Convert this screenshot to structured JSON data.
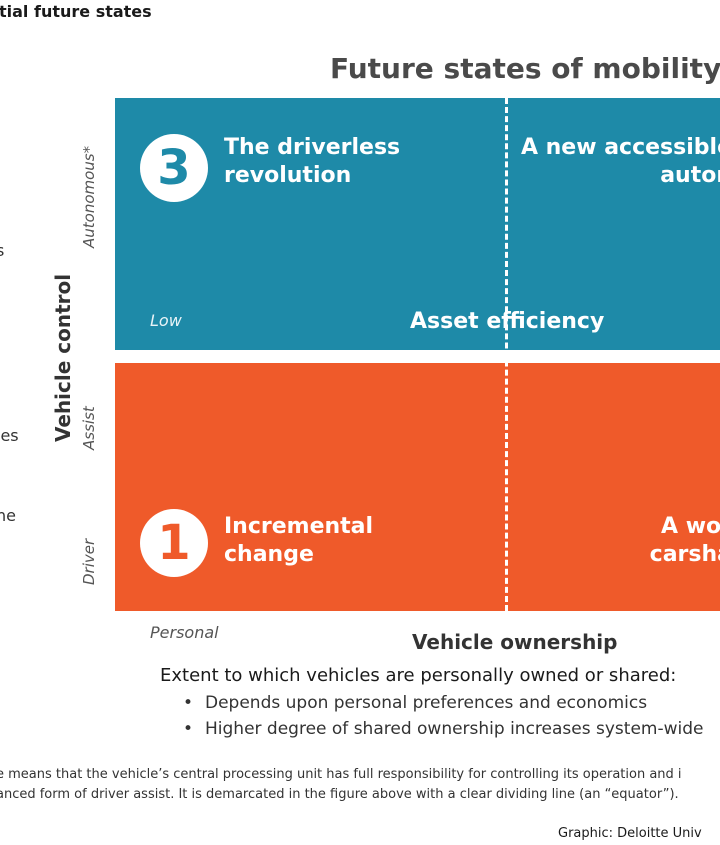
{
  "header": {
    "title": "tial future states"
  },
  "diagram": {
    "title": "Future states of mobility",
    "left_fragments": [
      "s",
      "ies",
      "ne"
    ],
    "quadrants": [
      {
        "id": 3,
        "number": "3",
        "label": "The driverless revolution"
      },
      {
        "id": 4,
        "label": "A new accessible auton"
      },
      {
        "id": 1,
        "number": "1",
        "label": "Incremental change"
      },
      {
        "id": 2,
        "label": "A wor carsha"
      }
    ],
    "asset_efficiency": {
      "low": "Low",
      "label": "Asset efficiency"
    },
    "y_axis": {
      "title": "Vehicle control",
      "levels": [
        "Autonomous*",
        "Assist",
        "Driver"
      ]
    },
    "x_axis": {
      "low": "Personal",
      "title": "Vehicle ownership"
    }
  },
  "explanation": {
    "heading": "Extent to which vehicles are personally owned or shared:",
    "bullets": [
      "Depends upon personal preferences and economics",
      "Higher degree of shared ownership increases system-wide"
    ]
  },
  "footnote": {
    "line1": "e means that the vehicle’s central processing unit has full responsibility for controlling its operation and i",
    "line2": "anced form of driver assist. It is demarcated in the figure above with a clear dividing line (an “equator”)."
  },
  "credit": "Graphic: Deloitte Univ",
  "colors": {
    "teal": "#1e8aa8",
    "orange": "#ef5a2a"
  }
}
